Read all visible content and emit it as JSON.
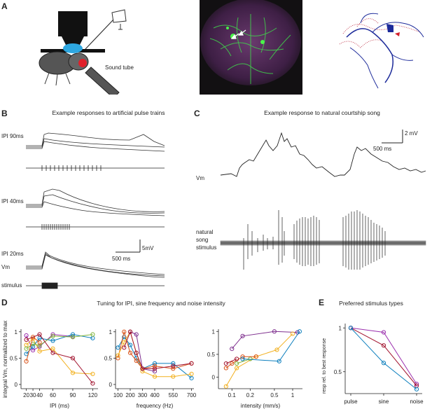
{
  "panels": {
    "A": {
      "letter": "A",
      "sound_tube_label": "Sound tube"
    },
    "B": {
      "letter": "B",
      "title": "Example responses to artificial pulse trains",
      "ipi_labels": [
        "IPI 90ms",
        "IPI 40ms",
        "IPI 20ms"
      ],
      "vm_label": "Vm",
      "stimulus_label": "stimulus",
      "scale_mv": "5mV",
      "scale_ms": "500 ms"
    },
    "C": {
      "letter": "C",
      "title": "Example response to natural courtship song",
      "vm_label": "Vm",
      "stimulus_label_lines": [
        "natural",
        "song",
        "stimulus"
      ],
      "scale_mv": "2 mV",
      "scale_ms": "500 ms"
    },
    "D": {
      "letter": "D",
      "title": "Tuning for IPI, sine frequency and noise intensity",
      "ylabel": "integral Vm, normalized to max"
    },
    "E": {
      "letter": "E",
      "title": "Preferred stimulus types"
    }
  },
  "chart_data": [
    {
      "type": "line",
      "panel": "D-ipi",
      "xlabel": "IPI (ms)",
      "ylabel": "integral Vm, normalized to max",
      "xticks": [
        20,
        30,
        40,
        60,
        90,
        120
      ],
      "yticks": [
        0,
        0.5,
        1
      ],
      "xlim": [
        12,
        128
      ],
      "ylim": [
        -0.08,
        1.05
      ],
      "series": [
        {
          "color": "#9b2fae",
          "x": [
            20,
            30,
            40,
            60,
            90
          ],
          "y": [
            0.93,
            0.65,
            0.72,
            0.95,
            0.91
          ]
        },
        {
          "color": "#f2b01e",
          "x": [
            20,
            30,
            40,
            60,
            90,
            120
          ],
          "y": [
            0.75,
            0.87,
            0.63,
            0.68,
            0.22,
            0.2
          ]
        },
        {
          "color": "#0b7ebd",
          "x": [
            20,
            30,
            40,
            60,
            90,
            120
          ],
          "y": [
            0.58,
            0.72,
            0.88,
            0.83,
            0.95,
            0.88
          ]
        },
        {
          "color": "#7fb33a",
          "x": [
            20,
            30,
            40,
            60,
            90,
            120
          ],
          "y": [
            0.68,
            0.77,
            0.74,
            0.92,
            0.9,
            0.95
          ]
        },
        {
          "color": "#d95319",
          "x": [
            20,
            30,
            40
          ],
          "y": [
            0.44,
            0.9,
            0.8
          ]
        },
        {
          "color": "#a2142f",
          "x": [
            20,
            40,
            60,
            90,
            120
          ],
          "y": [
            0.85,
            0.95,
            0.6,
            0.5,
            0.02
          ]
        }
      ]
    },
    {
      "type": "line",
      "panel": "D-freq",
      "xlabel": "frequency (Hz)",
      "xticks": [
        100,
        200,
        300,
        400,
        550,
        700
      ],
      "yticks": [
        0,
        0.5,
        1
      ],
      "xlim": [
        80,
        720
      ],
      "ylim": [
        -0.08,
        1.05
      ],
      "series": [
        {
          "color": "#0b7ebd",
          "x": [
            100,
            150,
            200,
            250,
            300,
            400,
            550,
            700
          ],
          "y": [
            0.7,
            0.9,
            0.75,
            0.5,
            0.3,
            0.4,
            0.4,
            0.12
          ]
        },
        {
          "color": "#d95319",
          "x": [
            100,
            150,
            200,
            250,
            300,
            400,
            550,
            700
          ],
          "y": [
            0.5,
            1.0,
            0.6,
            0.45,
            0.3,
            0.35,
            0.3,
            0.4
          ]
        },
        {
          "color": "#f2b01e",
          "x": [
            100,
            150,
            200,
            250,
            300,
            400,
            550,
            700
          ],
          "y": [
            0.55,
            0.8,
            1.0,
            0.6,
            0.25,
            0.15,
            0.15,
            0.2
          ]
        },
        {
          "color": "#7e2f8e",
          "x": [
            200,
            250,
            300,
            400
          ],
          "y": [
            1.0,
            0.95,
            0.3,
            0.25
          ]
        },
        {
          "color": "#a2142f",
          "x": [
            150,
            200,
            250,
            300,
            400,
            550,
            700
          ],
          "y": [
            0.7,
            1.0,
            0.6,
            0.3,
            0.3,
            0.35,
            0.4
          ]
        }
      ]
    },
    {
      "type": "line",
      "panel": "D-intensity",
      "xlabel": "intensity (mm/s)",
      "xticks": [
        0.1,
        0.2,
        0.5,
        1
      ],
      "yticks": [
        0,
        0.5,
        1
      ],
      "xlim": [
        0.06,
        1.45
      ],
      "ylim": [
        -0.25,
        1.05
      ],
      "log_x": true,
      "series": [
        {
          "color": "#7e2f8e",
          "x": [
            0.1,
            0.15,
            0.5,
            1.2
          ],
          "y": [
            0.62,
            0.9,
            1.0,
            0.98
          ]
        },
        {
          "color": "#f2b01e",
          "x": [
            0.08,
            0.12,
            0.25,
            0.55,
            1.0
          ],
          "y": [
            -0.2,
            0.2,
            0.45,
            0.6,
            0.95
          ]
        },
        {
          "color": "#7fb33a",
          "x": [
            0.12,
            0.2
          ],
          "y": [
            0.3,
            0.4
          ]
        },
        {
          "color": "#d95319",
          "x": [
            0.08,
            0.1,
            0.15,
            0.25
          ],
          "y": [
            0.2,
            0.3,
            0.45,
            0.45
          ]
        },
        {
          "color": "#a2142f",
          "x": [
            0.08,
            0.12
          ],
          "y": [
            0.3,
            0.4
          ]
        },
        {
          "color": "#0b7ebd",
          "x": [
            0.15,
            0.6,
            1.3
          ],
          "y": [
            0.4,
            0.35,
            1.0
          ]
        }
      ]
    },
    {
      "type": "line",
      "panel": "E",
      "ylabel": "resp rel. to best response",
      "categories": [
        "pulse",
        "sine",
        "noise"
      ],
      "yticks": [
        0.5,
        1
      ],
      "ylim": [
        0.25,
        1.05
      ],
      "series": [
        {
          "color": "#9b2fae",
          "values": [
            1.0,
            0.95,
            0.36
          ]
        },
        {
          "color": "#a2142f",
          "values": [
            1.0,
            0.8,
            0.34
          ]
        },
        {
          "color": "#0b7ebd",
          "values": [
            1.0,
            0.6,
            0.3
          ]
        }
      ]
    }
  ]
}
